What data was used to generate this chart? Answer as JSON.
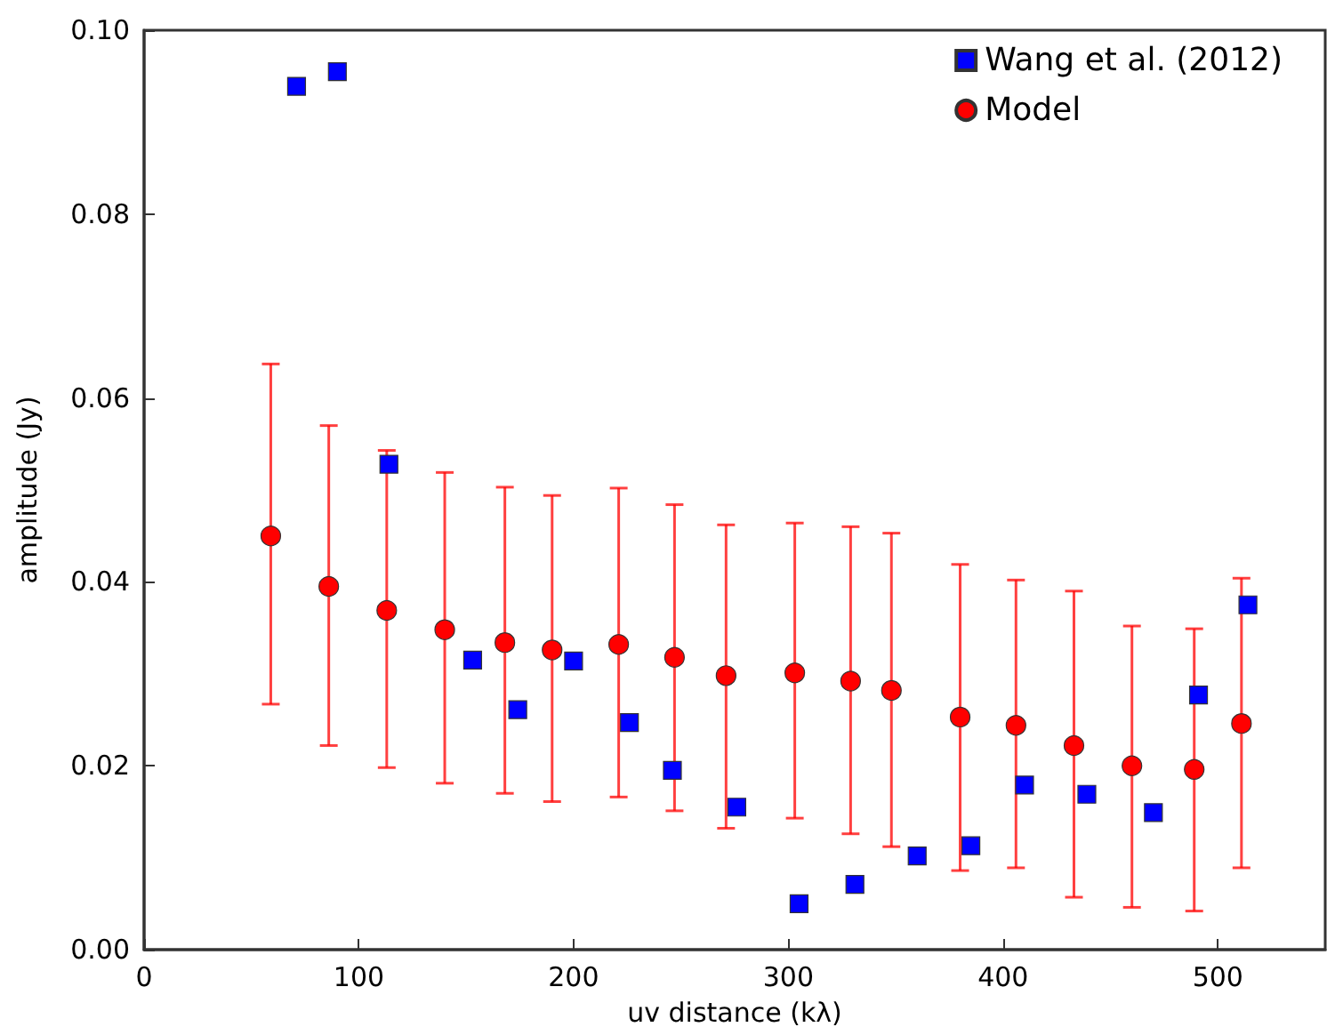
{
  "chart_data": {
    "type": "scatter",
    "xlabel": "uv distance (kλ)",
    "ylabel": "amplitude (Jy)",
    "xlim": [
      0,
      550
    ],
    "xticks": [
      0,
      100,
      200,
      300,
      400,
      500
    ],
    "ylim": [
      0,
      0.1
    ],
    "yticks": [
      {
        "value": 0,
        "label": "0.00"
      },
      {
        "value": 0.02,
        "label": "0.02"
      },
      {
        "value": 0.04,
        "label": "0.04"
      },
      {
        "value": 0.06,
        "label": "0.06"
      },
      {
        "value": 0.08,
        "label": "0.08"
      },
      {
        "value": 0.1,
        "label": "0.10"
      }
    ],
    "grid": false,
    "legend": "top right",
    "series": [
      {
        "name": "Wang et al. (2012)",
        "color": "#0000ff",
        "marker": "square",
        "x": [
          71,
          90,
          114,
          153,
          174,
          200,
          226,
          246,
          276,
          305,
          331,
          360,
          385,
          410,
          439,
          470,
          491,
          514
        ],
        "values": [
          0.0939,
          0.0955,
          0.0528,
          0.0315,
          0.0261,
          0.0314,
          0.0247,
          0.0195,
          0.0155,
          0.005,
          0.0071,
          0.0102,
          0.0113,
          0.0179,
          0.0169,
          0.0149,
          0.0277,
          0.0375
        ]
      },
      {
        "name": "Model",
        "color": "#ff0000",
        "marker": "circle",
        "x": [
          59,
          86,
          113,
          140,
          168,
          190,
          221,
          247,
          271,
          303,
          329,
          348,
          380,
          406,
          433,
          460,
          489,
          511
        ],
        "values": [
          0.045,
          0.0395,
          0.0369,
          0.0348,
          0.0334,
          0.0326,
          0.0332,
          0.0318,
          0.0298,
          0.0301,
          0.0292,
          0.0282,
          0.0253,
          0.0244,
          0.0222,
          0.02,
          0.0196,
          0.0246
        ],
        "errors": [
          [
            0.0267,
            0.0637
          ],
          [
            0.0222,
            0.057
          ],
          [
            0.0198,
            0.0543
          ],
          [
            0.0181,
            0.0519
          ],
          [
            0.017,
            0.0503
          ],
          [
            0.0161,
            0.0494
          ],
          [
            0.0166,
            0.0502
          ],
          [
            0.0151,
            0.0484
          ],
          [
            0.0132,
            0.0462
          ],
          [
            0.0143,
            0.0464
          ],
          [
            0.0126,
            0.046
          ],
          [
            0.0112,
            0.0453
          ],
          [
            0.0086,
            0.0419
          ],
          [
            0.0089,
            0.0402
          ],
          [
            0.0057,
            0.039
          ],
          [
            0.0046,
            0.0352
          ],
          [
            0.0042,
            0.0349
          ],
          [
            0.0089,
            0.0404
          ]
        ]
      }
    ]
  }
}
